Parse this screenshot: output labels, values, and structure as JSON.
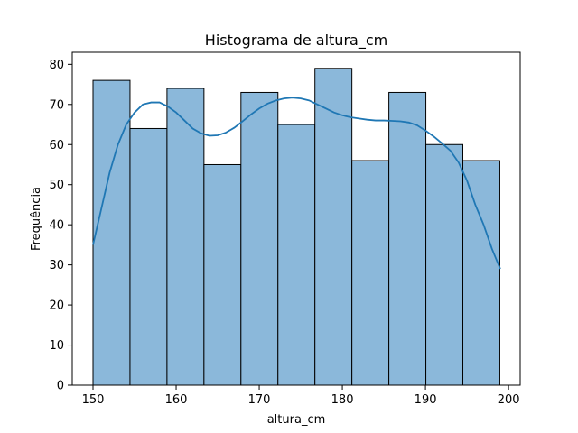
{
  "chart_data": {
    "type": "bar",
    "title": "Histograma de altura_cm",
    "xlabel": "altura_cm",
    "ylabel": "Frequência",
    "bins": [
      [
        150.0,
        154.45
      ],
      [
        154.45,
        158.9
      ],
      [
        158.9,
        163.35
      ],
      [
        163.35,
        167.8
      ],
      [
        167.8,
        172.25
      ],
      [
        172.25,
        176.7
      ],
      [
        176.7,
        181.15
      ],
      [
        181.15,
        185.6
      ],
      [
        185.6,
        190.05
      ],
      [
        190.05,
        194.5
      ],
      [
        194.5,
        198.95
      ]
    ],
    "values": [
      76,
      64,
      74,
      55,
      73,
      65,
      79,
      56,
      73,
      60,
      56
    ],
    "kde": {
      "x": [
        150,
        151,
        152,
        153,
        154,
        155,
        156,
        157,
        158,
        159,
        160,
        161,
        162,
        163,
        164,
        165,
        166,
        167,
        168,
        169,
        170,
        171,
        172,
        173,
        174,
        175,
        176,
        177,
        178,
        179,
        180,
        181,
        182,
        183,
        184,
        185,
        186,
        187,
        188,
        189,
        190,
        191,
        192,
        193,
        194,
        195,
        196,
        197,
        198,
        199
      ],
      "y": [
        35,
        44,
        53,
        60,
        65,
        68,
        70,
        70.5,
        70.5,
        69.5,
        68,
        66,
        64,
        62.8,
        62.2,
        62.3,
        63,
        64.2,
        65.8,
        67.5,
        69,
        70.2,
        71,
        71.5,
        71.7,
        71.5,
        71,
        70,
        69,
        68,
        67.3,
        66.8,
        66.5,
        66.2,
        66,
        66,
        65.9,
        65.8,
        65.5,
        64.8,
        63.5,
        62,
        60.3,
        58.5,
        55.5,
        51,
        45,
        40,
        34,
        29
      ]
    },
    "xlim": [
      147.5,
      201.4
    ],
    "ylim": [
      0,
      83
    ],
    "xticks": [
      150,
      160,
      170,
      180,
      190,
      200
    ],
    "yticks": [
      0,
      10,
      20,
      30,
      40,
      50,
      60,
      70,
      80
    ],
    "bar_color": "#8bb8da",
    "bar_edge_color": "#000000",
    "kde_color": "#1f77b4",
    "grid": false,
    "legend": "none"
  }
}
